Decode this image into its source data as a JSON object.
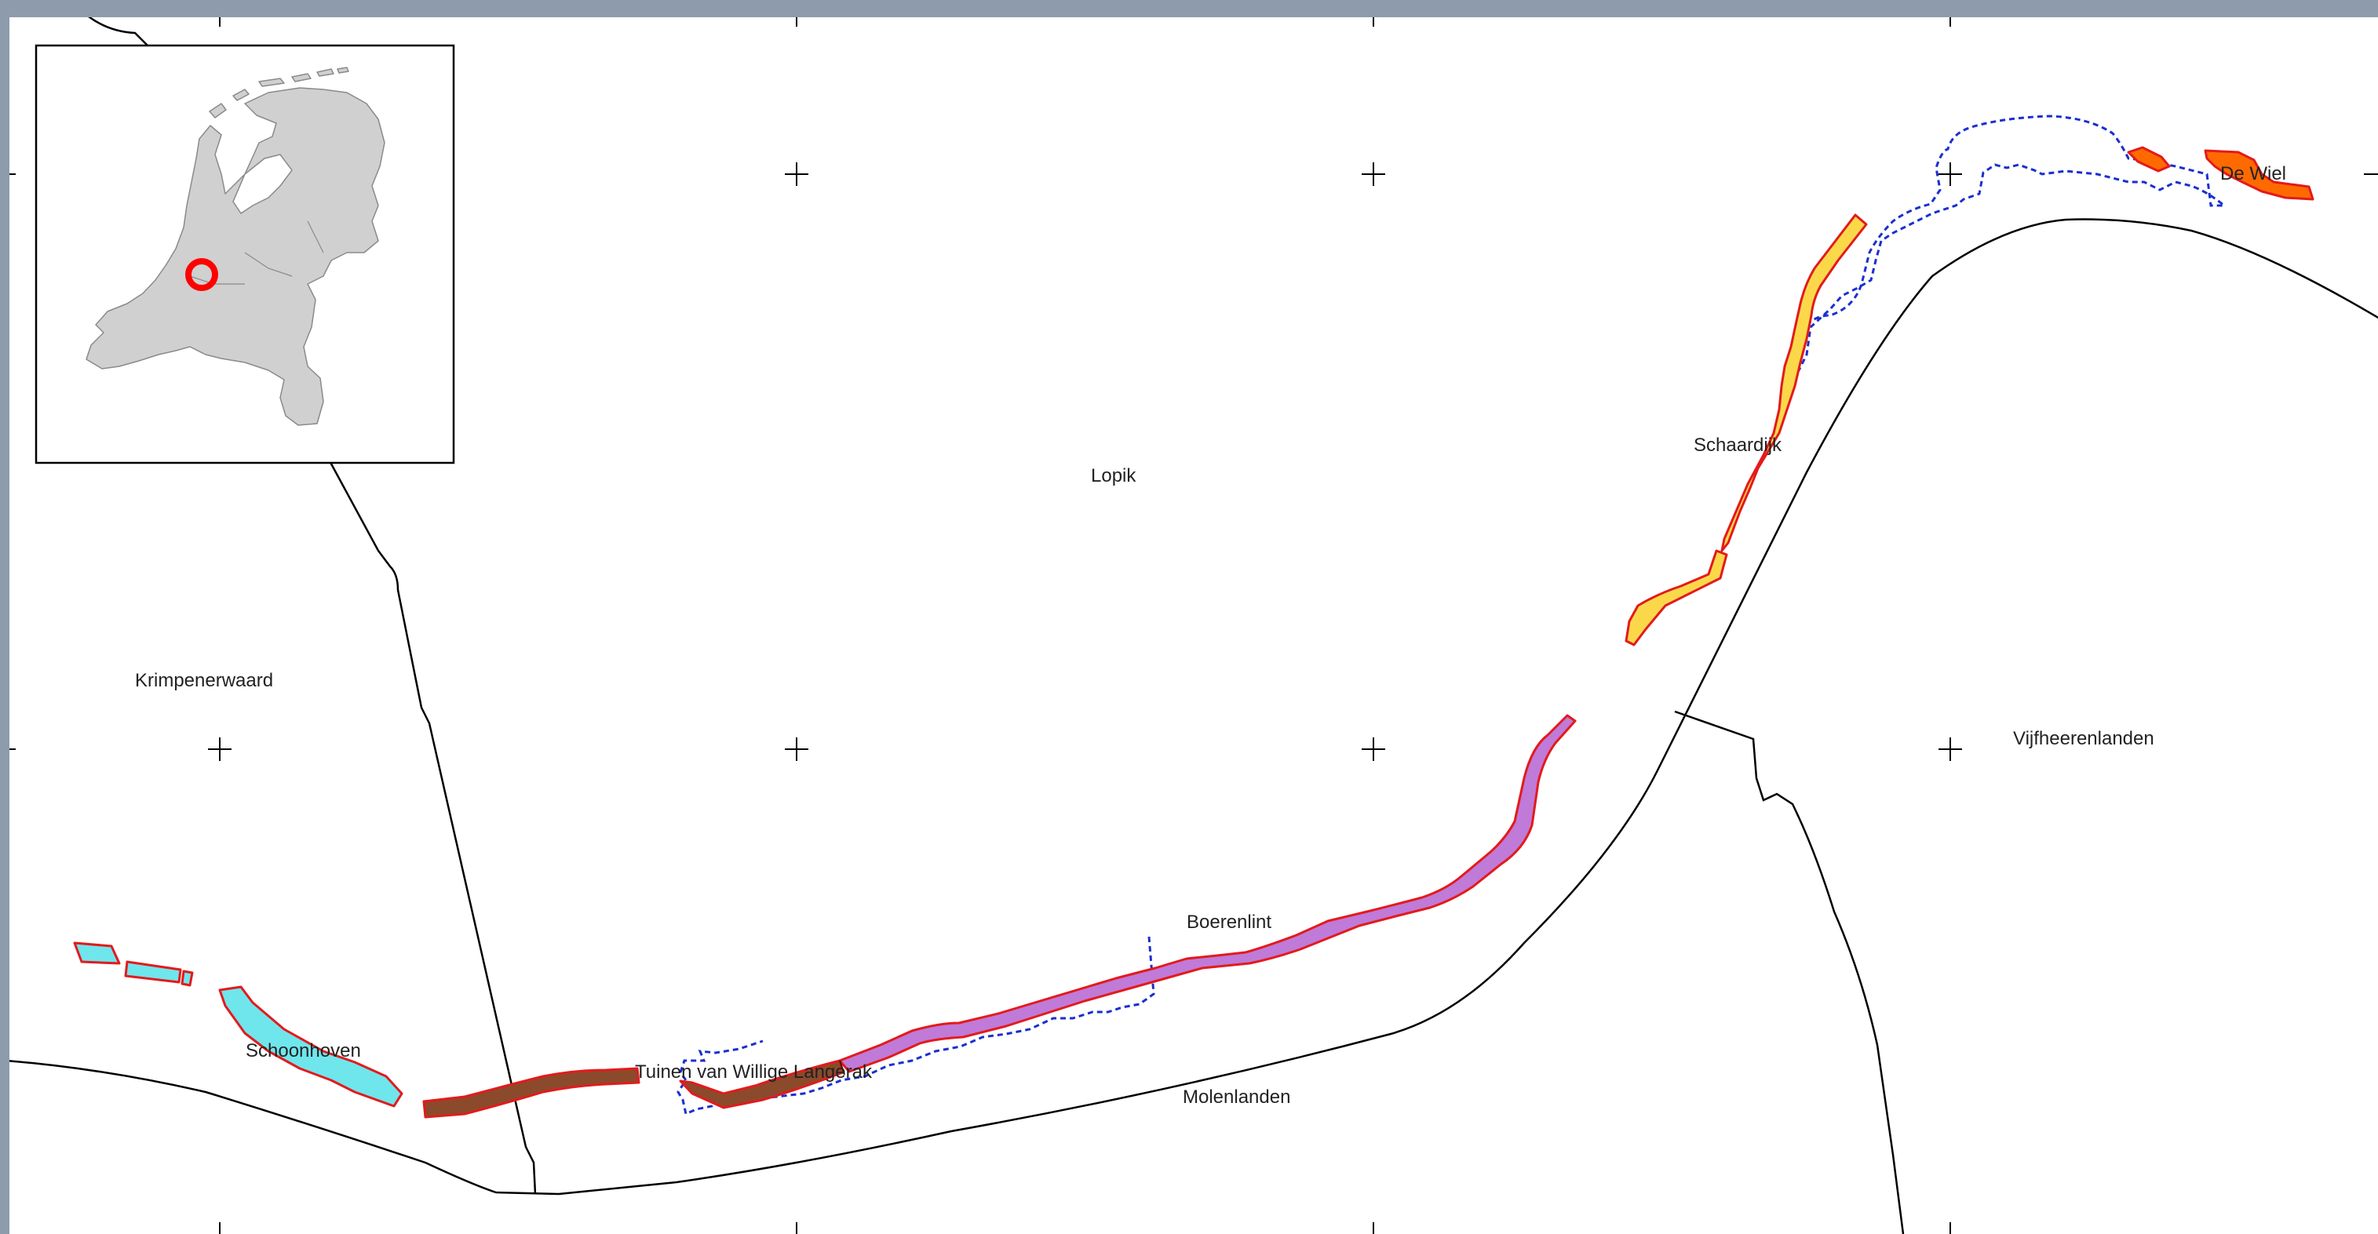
{
  "map": {
    "labels": {
      "krimpenerwaard": "Krimpenerwaard",
      "lopik": "Lopik",
      "vijfheerenlanden": "Vijfheerenlanden",
      "molenlanden": "Molenlanden",
      "schoonhoven": "Schoonhoven",
      "tuinen": "Tuinen van Willige Langerak",
      "boerenlint": "Boerenlint",
      "schaardijk": "Schaardijk",
      "dewiel": "De Wiel"
    },
    "colors": {
      "background": "#ffffff",
      "frame": "#8d9bad",
      "boundary": "#000000",
      "zone_outline": "#e31a1c",
      "schoonhoven_fill": "#6fe6ec",
      "tuinen_fill": "#8b4a2b",
      "boerenlint_fill": "#c07ad8",
      "schaardijk_fill": "#fbd84a",
      "dewiel_fill": "#ff6a00",
      "dashed_boundary": "#1a2fd0",
      "inset_land": "#d0d0d0",
      "inset_marker": "#ff0000"
    },
    "inset": {
      "description_icon": "netherlands-locator-map",
      "marker": "red-ring"
    }
  }
}
